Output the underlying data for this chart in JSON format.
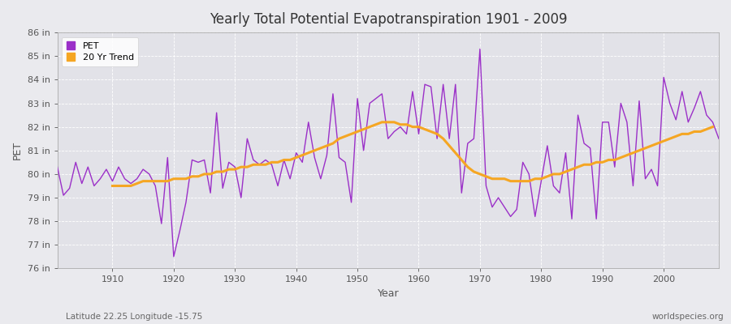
{
  "title": "Yearly Total Potential Evapotranspiration 1901 - 2009",
  "xlabel": "Year",
  "ylabel": "PET",
  "subtitle_left": "Latitude 22.25 Longitude -15.75",
  "subtitle_right": "worldspecies.org",
  "pet_color": "#9b30c8",
  "trend_color": "#f5a623",
  "background_color": "#e8e8ec",
  "plot_bg_color": "#e0e0e8",
  "ylim": [
    76,
    86
  ],
  "xlim": [
    1901,
    2009
  ],
  "years": [
    1901,
    1902,
    1903,
    1904,
    1905,
    1906,
    1907,
    1908,
    1909,
    1910,
    1911,
    1912,
    1913,
    1914,
    1915,
    1916,
    1917,
    1918,
    1919,
    1920,
    1921,
    1922,
    1923,
    1924,
    1925,
    1926,
    1927,
    1928,
    1929,
    1930,
    1931,
    1932,
    1933,
    1934,
    1935,
    1936,
    1937,
    1938,
    1939,
    1940,
    1941,
    1942,
    1943,
    1944,
    1945,
    1946,
    1947,
    1948,
    1949,
    1950,
    1951,
    1952,
    1953,
    1954,
    1955,
    1956,
    1957,
    1958,
    1959,
    1960,
    1961,
    1962,
    1963,
    1964,
    1965,
    1966,
    1967,
    1968,
    1969,
    1970,
    1971,
    1972,
    1973,
    1974,
    1975,
    1976,
    1977,
    1978,
    1979,
    1980,
    1981,
    1982,
    1983,
    1984,
    1985,
    1986,
    1987,
    1988,
    1989,
    1990,
    1991,
    1992,
    1993,
    1994,
    1995,
    1996,
    1997,
    1998,
    1999,
    2000,
    2001,
    2002,
    2003,
    2004,
    2005,
    2006,
    2007,
    2008,
    2009
  ],
  "pet": [
    80.3,
    79.1,
    79.4,
    80.5,
    79.6,
    80.3,
    79.5,
    79.8,
    80.2,
    79.7,
    80.3,
    79.8,
    79.6,
    79.8,
    80.2,
    80.0,
    79.5,
    77.9,
    80.7,
    76.5,
    77.6,
    78.8,
    80.6,
    80.5,
    80.6,
    79.2,
    82.6,
    79.4,
    80.5,
    80.3,
    79.0,
    81.5,
    80.6,
    80.4,
    80.6,
    80.4,
    79.5,
    80.6,
    79.8,
    80.9,
    80.5,
    82.2,
    80.7,
    79.8,
    80.8,
    83.4,
    80.7,
    80.5,
    78.8,
    83.2,
    81.0,
    83.0,
    83.2,
    83.4,
    81.5,
    81.8,
    82.0,
    81.7,
    83.5,
    81.7,
    83.8,
    83.7,
    81.5,
    83.8,
    81.5,
    83.8,
    79.2,
    81.3,
    81.5,
    85.3,
    79.5,
    78.6,
    79.0,
    78.6,
    78.2,
    78.5,
    80.5,
    80.0,
    78.2,
    79.7,
    81.2,
    79.5,
    79.2,
    80.9,
    78.1,
    82.5,
    81.3,
    81.1,
    78.1,
    82.2,
    82.2,
    80.3,
    83.0,
    82.2,
    79.5,
    83.1,
    79.8,
    80.2,
    79.5,
    84.1,
    83.0,
    82.3,
    83.5,
    82.2,
    82.8,
    83.5,
    82.5,
    82.2,
    81.5
  ],
  "trend": [
    null,
    null,
    null,
    null,
    null,
    null,
    null,
    null,
    null,
    79.5,
    79.5,
    79.5,
    79.5,
    79.6,
    79.7,
    79.7,
    79.7,
    79.7,
    79.7,
    79.8,
    79.8,
    79.8,
    79.9,
    79.9,
    80.0,
    80.0,
    80.1,
    80.1,
    80.2,
    80.2,
    80.3,
    80.3,
    80.4,
    80.4,
    80.4,
    80.5,
    80.5,
    80.6,
    80.6,
    80.7,
    80.8,
    80.9,
    81.0,
    81.1,
    81.2,
    81.3,
    81.5,
    81.6,
    81.7,
    81.8,
    81.9,
    82.0,
    82.1,
    82.2,
    82.2,
    82.2,
    82.1,
    82.1,
    82.0,
    82.0,
    81.9,
    81.8,
    81.7,
    81.5,
    81.2,
    80.9,
    80.6,
    80.3,
    80.1,
    80.0,
    79.9,
    79.8,
    79.8,
    79.8,
    79.7,
    79.7,
    79.7,
    79.7,
    79.8,
    79.8,
    79.9,
    80.0,
    80.0,
    80.1,
    80.2,
    80.3,
    80.4,
    80.4,
    80.5,
    80.5,
    80.6,
    80.6,
    80.7,
    80.8,
    80.9,
    81.0,
    81.1,
    81.2,
    81.3,
    81.4,
    81.5,
    81.6,
    81.7,
    81.7,
    81.8,
    81.8,
    81.9,
    82.0
  ]
}
